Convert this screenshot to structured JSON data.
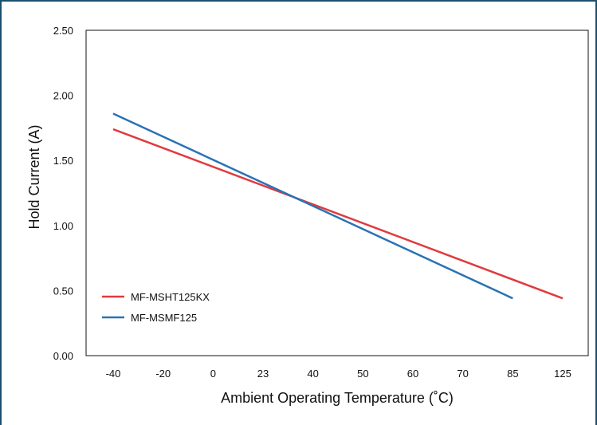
{
  "chart_data": {
    "type": "line",
    "xlabel": "Ambient Operating Temperature (˚C)",
    "ylabel": "Hold Current (A)",
    "x_categories": [
      "-40",
      "-20",
      "0",
      "23",
      "40",
      "50",
      "60",
      "70",
      "85",
      "125"
    ],
    "y_ticks": [
      "0.00",
      "0.50",
      "1.00",
      "1.50",
      "2.00",
      "2.50"
    ],
    "ylim": [
      0,
      2.5
    ],
    "grid": false,
    "legend_position": "bottom-left",
    "series": [
      {
        "name": "MF-MSHT125KX",
        "color": "#e03a3e",
        "points": [
          {
            "x": "-40",
            "y": 1.74
          },
          {
            "x": "125",
            "y": 0.44
          }
        ]
      },
      {
        "name": "MF-MSMF125",
        "color": "#2a72b5",
        "points": [
          {
            "x": "-40",
            "y": 1.86
          },
          {
            "x": "85",
            "y": 0.44
          }
        ]
      }
    ]
  }
}
